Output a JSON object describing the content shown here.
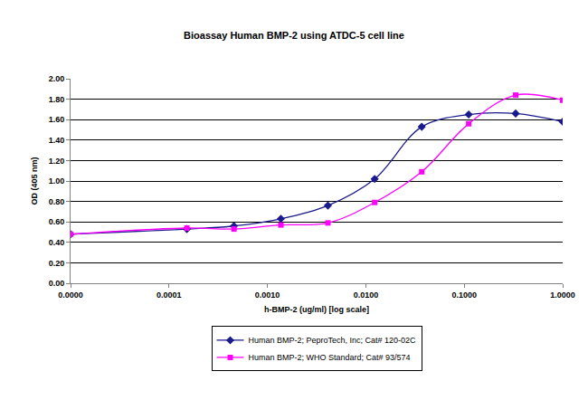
{
  "chart_data": {
    "type": "line",
    "title": "Bioassay Human BMP-2 using ATDC-5 cell line",
    "x_label": "h-BMP-2 (ug/ml) [log scale]",
    "y_label": "OD (405 nm)",
    "log": "x",
    "grid": "y",
    "legend": "bottom",
    "line_style": "smooth",
    "x": [
      1e-05,
      0.000152,
      0.000457,
      0.00137,
      0.00412,
      0.0123,
      0.037,
      0.111,
      0.333,
      1.0
    ],
    "series": [
      {
        "name": "Human BMP-2; PeproTech, Inc; Cat# 120-02C",
        "color": "#1a1a8c",
        "marker": "diamond",
        "values": [
          0.48,
          0.53,
          0.56,
          0.63,
          0.76,
          1.02,
          1.53,
          1.65,
          1.66,
          1.58
        ]
      },
      {
        "name": "Human BMP-2; WHO Standard; Cat# 93/574",
        "color": "#ff00ff",
        "marker": "square",
        "values": [
          0.48,
          0.54,
          0.53,
          0.57,
          0.59,
          0.79,
          1.09,
          1.56,
          1.84,
          1.79
        ]
      }
    ],
    "xlim": [
      1e-05,
      1.0
    ],
    "xticks": [
      {
        "value": 1e-05,
        "label": "0.0000"
      },
      {
        "value": 0.0001,
        "label": "0.0001"
      },
      {
        "value": 0.001,
        "label": "0.0010"
      },
      {
        "value": 0.01,
        "label": "0.0100"
      },
      {
        "value": 0.1,
        "label": "0.1000"
      },
      {
        "value": 1.0,
        "label": "1.0000"
      }
    ],
    "ylim": [
      0,
      2
    ],
    "yticks": [
      {
        "value": 0,
        "label": "0.00"
      },
      {
        "value": 0.2,
        "label": "0.20"
      },
      {
        "value": 0.4,
        "label": "0.40"
      },
      {
        "value": 0.6,
        "label": "0.60"
      },
      {
        "value": 0.8,
        "label": "0.80"
      },
      {
        "value": 1.0,
        "label": "1.00"
      },
      {
        "value": 1.2,
        "label": "1.20"
      },
      {
        "value": 1.4,
        "label": "1.40"
      },
      {
        "value": 1.6,
        "label": "1.60"
      },
      {
        "value": 1.8,
        "label": "1.80"
      },
      {
        "value": 2.0,
        "label": "2.00"
      }
    ]
  }
}
